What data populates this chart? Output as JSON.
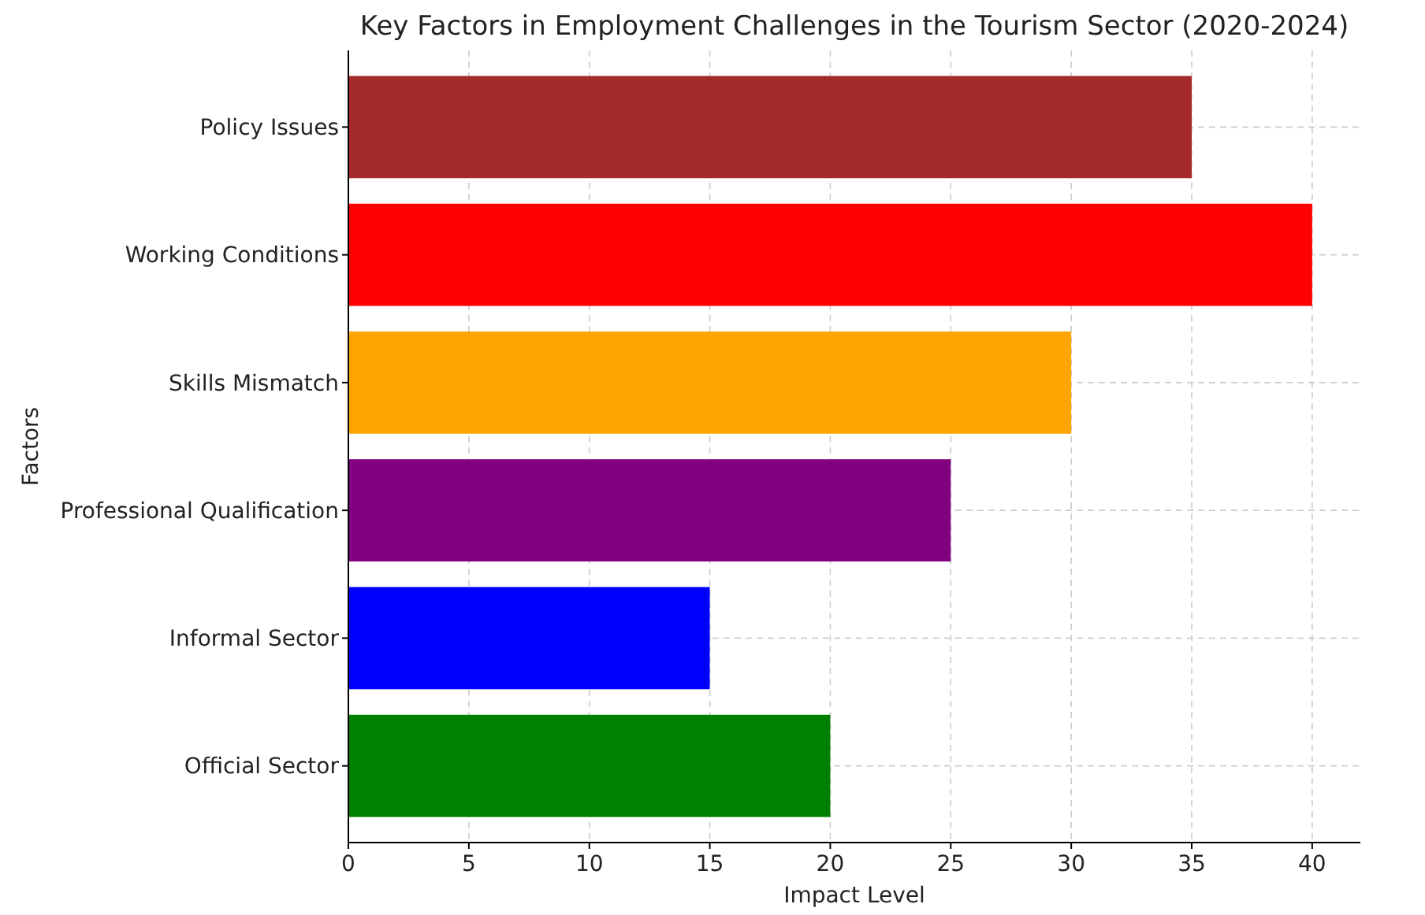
{
  "chart_data": {
    "type": "bar",
    "orientation": "horizontal",
    "title": "Key Factors in Employment Challenges in the Tourism Sector (2020-2024)",
    "xlabel": "Impact Level",
    "ylabel": "Factors",
    "categories": [
      "Policy Issues",
      "Working Conditions",
      "Skills Mismatch",
      "Professional Qualification",
      "Informal Sector",
      "Official Sector"
    ],
    "values": [
      35,
      40,
      30,
      25,
      15,
      20
    ],
    "colors": [
      "#a52a2a",
      "#ff0000",
      "#ffa500",
      "#800080",
      "#0000ff",
      "#008000"
    ],
    "xlim": [
      0,
      42
    ],
    "xticks": [
      0,
      5,
      10,
      15,
      20,
      25,
      30,
      35,
      40
    ],
    "grid": true
  }
}
